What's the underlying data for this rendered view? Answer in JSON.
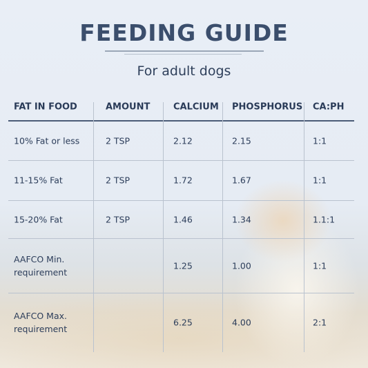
{
  "header": {
    "title": "FEEDING GUIDE",
    "subtitle": "For adult dogs"
  },
  "table": {
    "columns": [
      "FAT IN FOOD",
      "AMOUNT",
      "CALCIUM",
      "PHOSPHORUS",
      "CA:PH"
    ],
    "rows": [
      [
        "10% Fat or less",
        "2 TSP",
        "2.12",
        "2.15",
        "1:1"
      ],
      [
        "11-15% Fat",
        "2 TSP",
        "1.72",
        "1.67",
        "1:1"
      ],
      [
        "15-20% Fat",
        "2 TSP",
        "1.46",
        "1.34",
        "1.1:1"
      ],
      [
        "AAFCO Min. requirement",
        null,
        "1.25",
        "1.00",
        "1:1"
      ],
      [
        "AAFCO Max. requirement",
        null,
        "6.25",
        "4.00",
        "2:1"
      ]
    ]
  }
}
